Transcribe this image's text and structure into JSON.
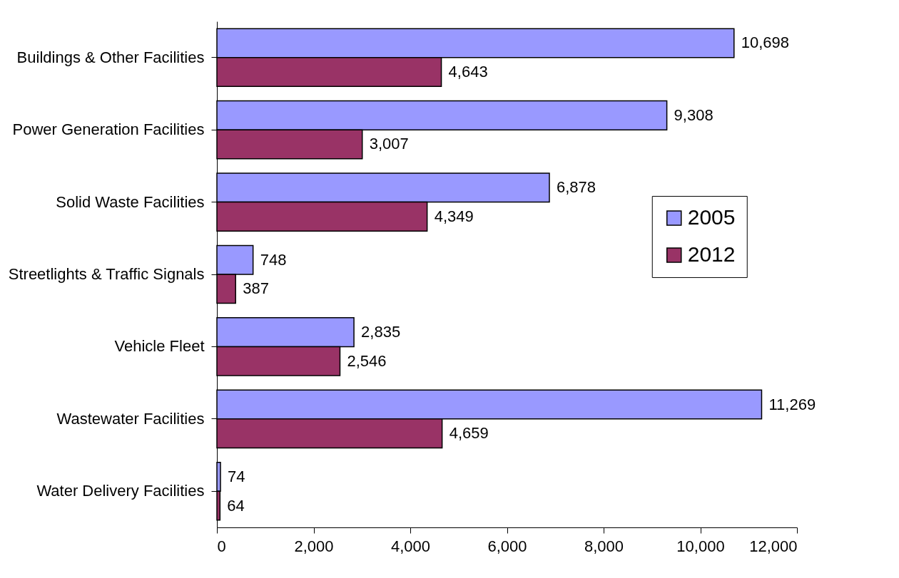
{
  "chart_data": {
    "type": "bar",
    "orientation": "horizontal",
    "categories": [
      "Buildings & Other Facilities",
      "Power Generation Facilities",
      "Solid Waste Facilities",
      "Streetlights & Traffic Signals",
      "Vehicle Fleet",
      "Wastewater Facilities",
      "Water Delivery Facilities"
    ],
    "series": [
      {
        "name": "2005",
        "color": "#9999ff",
        "values": [
          10698,
          9308,
          6878,
          748,
          2835,
          11269,
          74
        ],
        "value_labels": [
          "10,698",
          "9,308",
          "6,878",
          "748",
          "2,835",
          "11,269",
          "74"
        ]
      },
      {
        "name": "2012",
        "color": "#993366",
        "values": [
          4643,
          3007,
          4349,
          387,
          2546,
          4659,
          64
        ],
        "value_labels": [
          "4,643",
          "3,007",
          "4,349",
          "387",
          "2,546",
          "4,659",
          "64"
        ]
      }
    ],
    "xlim": [
      0,
      12000
    ],
    "xticks": [
      0,
      {
        "value": 2000,
        "label": "2,000"
      },
      {
        "value": 4000,
        "label": "4,000"
      },
      {
        "value": 6000,
        "label": "6,000"
      },
      {
        "value": 8000,
        "label": "8,000"
      },
      {
        "value": 10000,
        "label": "10,000"
      },
      {
        "value": 12000,
        "label": "12,000"
      }
    ],
    "legend": "right",
    "grid": false
  }
}
